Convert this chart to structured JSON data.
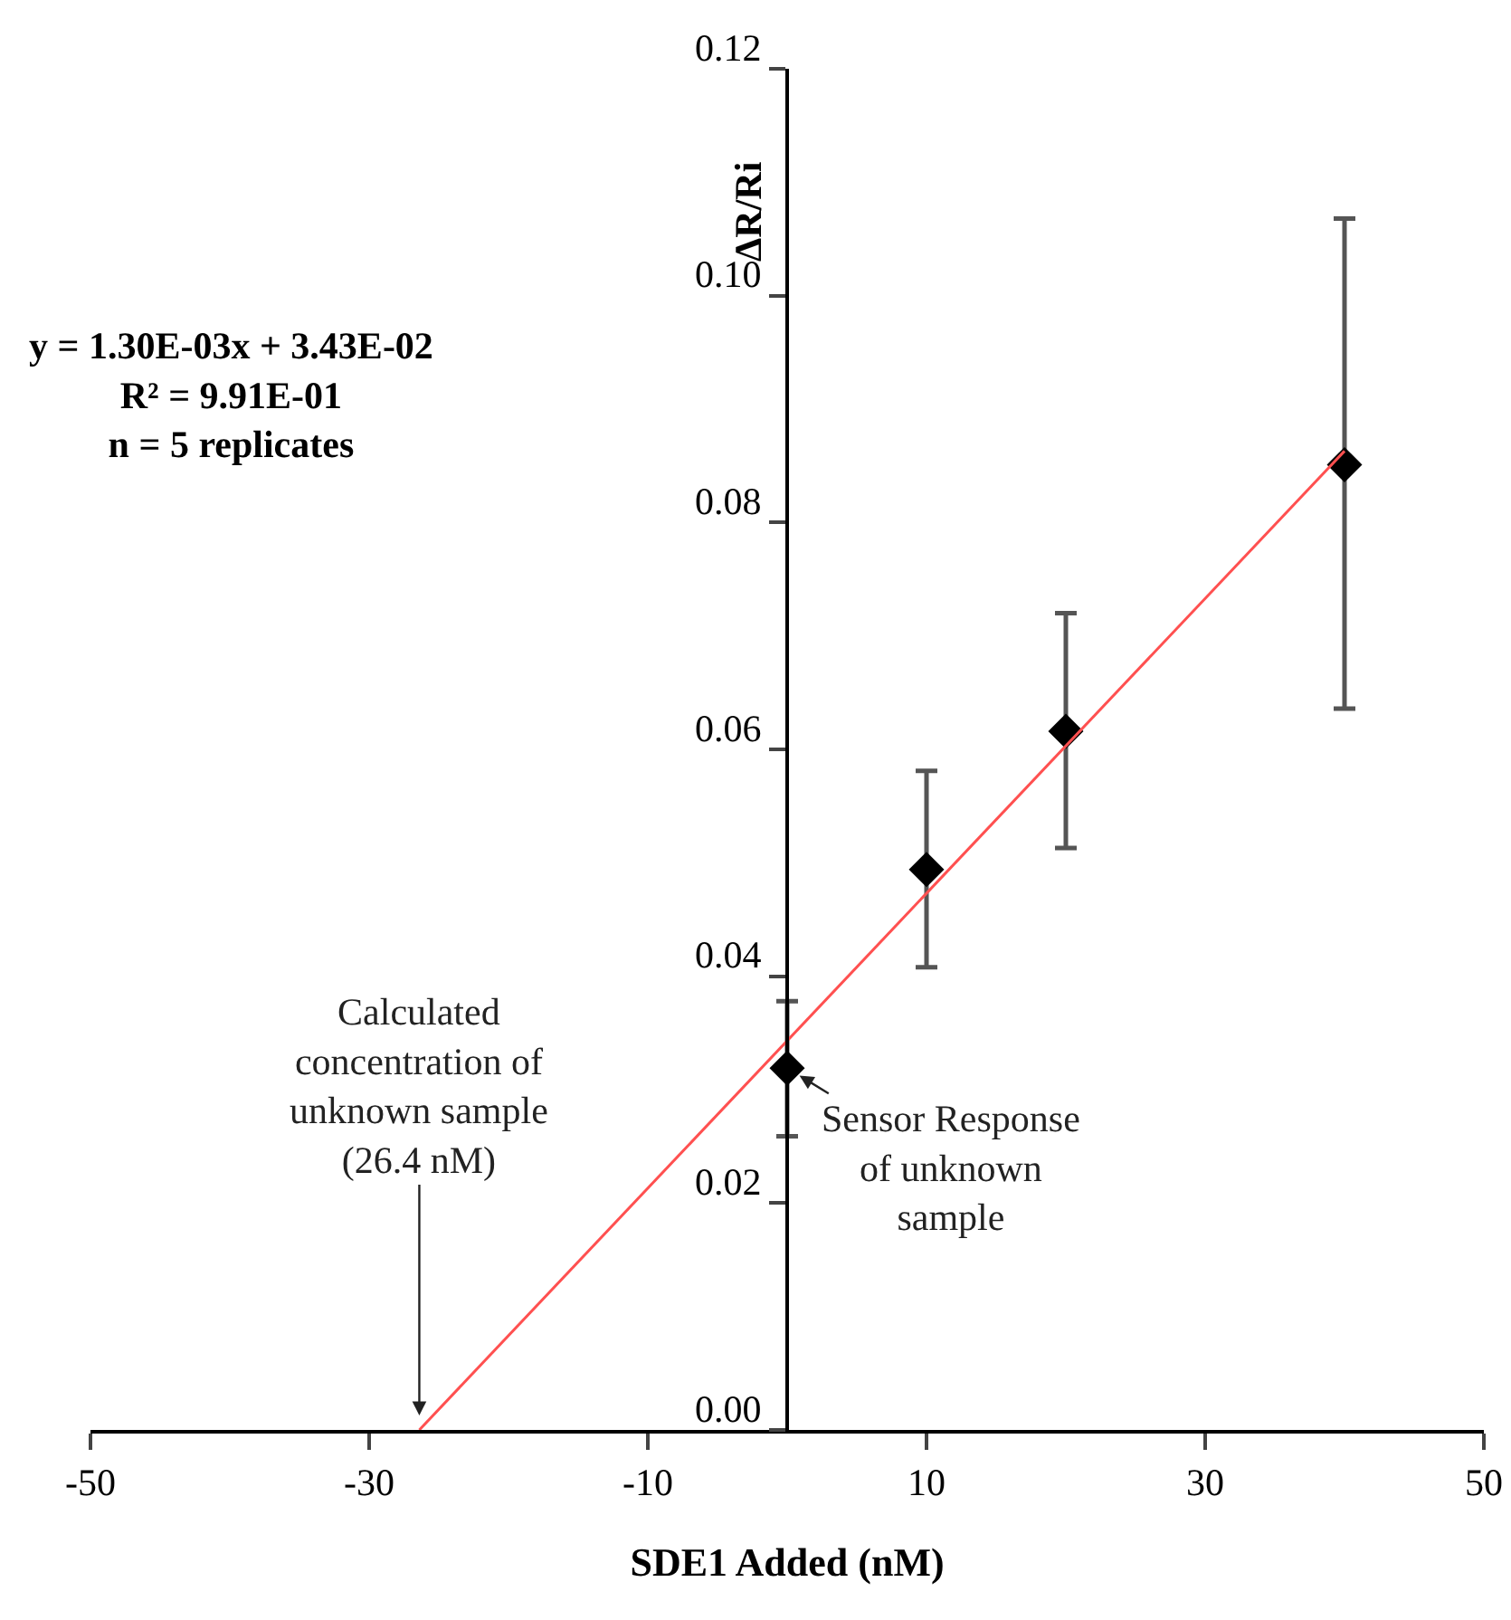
{
  "chart_data": {
    "type": "scatter",
    "xlabel": "SDE1 Added (nM)",
    "ylabel": "ΔR/Ri",
    "series": [
      {
        "color": "#000000",
        "x": [
          0,
          10,
          20,
          40
        ],
        "values": [
          0.0319,
          0.0494,
          0.0616,
          0.0851
        ],
        "errors": [
          [
            0.0259,
            0.0378
          ],
          [
            0.0408,
            0.0581
          ],
          [
            0.0513,
            0.072
          ],
          [
            0.0636,
            0.1068
          ]
        ],
        "marker": "diamond"
      },
      {
        "type": "line",
        "color": "#ff5050",
        "x": [
          -26.4,
          40
        ],
        "values": [
          0,
          0.0863
        ],
        "marker": "none",
        "line_style": "solid"
      }
    ],
    "xlim": [
      -50,
      50
    ],
    "xticks": [
      -50,
      -30,
      -10,
      10,
      30,
      50
    ],
    "ylim": [
      0,
      0.12
    ],
    "yticks": [
      {
        "value": 0,
        "label": "0.00"
      },
      {
        "value": 0.02,
        "label": "0.02"
      },
      {
        "value": 0.04,
        "label": "0.04"
      },
      {
        "value": 0.06,
        "label": "0.06"
      },
      {
        "value": 0.08,
        "label": "0.08"
      },
      {
        "value": 0.1,
        "label": "0.10"
      },
      {
        "value": 0.12,
        "label": "0.12"
      }
    ],
    "grid": false,
    "annotations": [
      "y = 1.30E-03x + 3.43E-02\nR² = 9.91E-01\nn = 5 replicates",
      {
        "text": "Calculated\nconcentration of\nunknown sample\n(26.4 nM)",
        "x": -26.4,
        "y": 0
      },
      {
        "text": "Sensor Response\nof unknown\nsample",
        "x": 0,
        "y": 0.0319
      }
    ]
  }
}
